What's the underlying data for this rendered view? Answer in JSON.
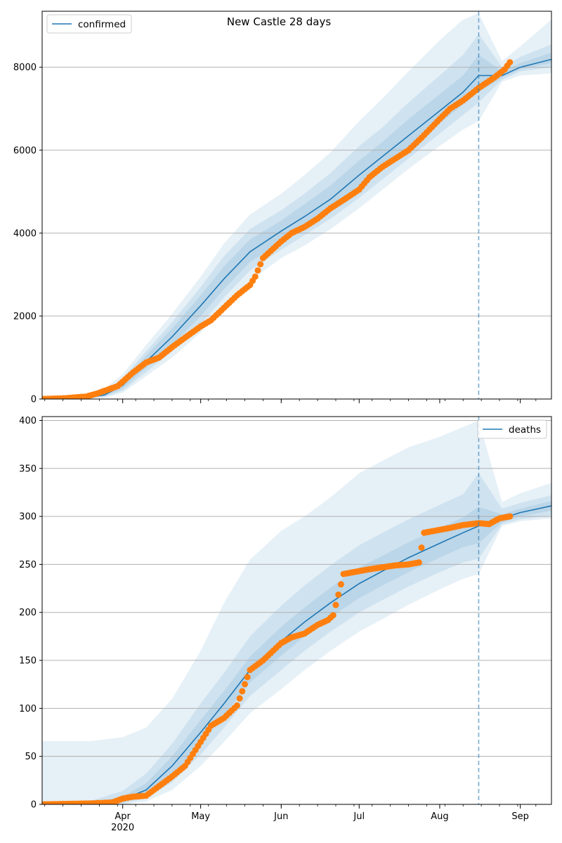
{
  "colors": {
    "model_line": "#1f77b4",
    "observed_points": "#ff7f0e",
    "band": "#1f77b4",
    "grid": "#b0b0b0",
    "forecast_marker": "#1f77b4"
  },
  "chart_data": [
    {
      "type": "line",
      "title": "New Castle 28 days",
      "xlabel": "",
      "ylabel": "",
      "grid": "horizontal",
      "legend": {
        "placement": "top-left",
        "entries": [
          "confirmed"
        ]
      },
      "x_ticks": {
        "show_labels": false,
        "months": [
          "Apr",
          "May",
          "Jun",
          "Jul",
          "Aug",
          "Sep"
        ]
      },
      "xlim": [
        "2020-03-01",
        "2020-09-13"
      ],
      "ylim": [
        0,
        9350
      ],
      "y_ticks": [
        0,
        2000,
        4000,
        6000,
        8000
      ],
      "forecast_start": "2020-08-16",
      "series": [
        {
          "name": "confirmed",
          "kind": "model",
          "x": [
            "2020-03-01",
            "2020-03-16",
            "2020-03-25",
            "2020-04-01",
            "2020-04-10",
            "2020-04-20",
            "2020-05-01",
            "2020-05-10",
            "2020-05-20",
            "2020-06-01",
            "2020-06-10",
            "2020-06-20",
            "2020-07-01",
            "2020-07-10",
            "2020-07-20",
            "2020-08-01",
            "2020-08-10",
            "2020-08-16",
            "2020-08-25",
            "2020-09-01",
            "2020-09-13"
          ],
          "values": [
            0,
            15,
            100,
            330,
            900,
            1500,
            2250,
            2900,
            3550,
            4050,
            4400,
            4820,
            5400,
            5850,
            6350,
            6950,
            7400,
            7800,
            7800,
            8000,
            8190
          ],
          "bands": {
            "inner": {
              "lower": [
                0,
                5,
                70,
                250,
                750,
                1300,
                2000,
                2650,
                3300,
                3800,
                4150,
                4550,
                5100,
                5550,
                6050,
                6650,
                7100,
                7400,
                7750,
                7950,
                8100
              ],
              "upper": [
                0,
                25,
                140,
                420,
                1050,
                1700,
                2500,
                3200,
                3850,
                4300,
                4700,
                5150,
                5750,
                6200,
                6750,
                7350,
                7800,
                8300,
                7900,
                8100,
                8350
              ]
            },
            "middle": {
              "lower": [
                0,
                2,
                50,
                200,
                650,
                1150,
                1800,
                2450,
                3100,
                3600,
                3950,
                4350,
                4850,
                5300,
                5800,
                6400,
                6850,
                7150,
                7700,
                7900,
                8000
              ],
              "upper": [
                0,
                35,
                180,
                500,
                1150,
                1850,
                2700,
                3450,
                4100,
                4550,
                4950,
                5450,
                6100,
                6550,
                7150,
                7800,
                8300,
                8800,
                8000,
                8250,
                8550
              ]
            },
            "outer": {
              "lower": [
                0,
                0,
                30,
                150,
                550,
                1000,
                1600,
                2250,
                2850,
                3400,
                3700,
                4100,
                4600,
                5050,
                5550,
                6100,
                6500,
                6700,
                7650,
                7800,
                7850
              ],
              "upper": [
                0,
                50,
                250,
                600,
                1300,
                2050,
                2950,
                3750,
                4450,
                4950,
                5400,
                5950,
                6700,
                7250,
                7900,
                8650,
                9150,
                9300,
                8150,
                8500,
                9150
              ]
            }
          }
        },
        {
          "name": "",
          "kind": "observed",
          "x": [
            "2020-03-01",
            "2020-03-10",
            "2020-03-18",
            "2020-03-22",
            "2020-03-26",
            "2020-03-30",
            "2020-04-01",
            "2020-04-05",
            "2020-04-10",
            "2020-04-15",
            "2020-04-20",
            "2020-04-25",
            "2020-05-01",
            "2020-05-05",
            "2020-05-10",
            "2020-05-15",
            "2020-05-20",
            "2020-05-22",
            "2020-05-25",
            "2020-06-01",
            "2020-06-05",
            "2020-06-10",
            "2020-06-15",
            "2020-06-20",
            "2020-06-25",
            "2020-07-01",
            "2020-07-05",
            "2020-07-10",
            "2020-07-15",
            "2020-07-20",
            "2020-07-25",
            "2020-08-01",
            "2020-08-05",
            "2020-08-10",
            "2020-08-16",
            "2020-08-22",
            "2020-08-26",
            "2020-08-28"
          ],
          "values": [
            0,
            20,
            60,
            130,
            220,
            310,
            420,
            640,
            880,
            1000,
            1250,
            1480,
            1750,
            1900,
            2200,
            2500,
            2750,
            2950,
            3400,
            3800,
            4000,
            4150,
            4350,
            4600,
            4800,
            5050,
            5350,
            5600,
            5800,
            6000,
            6300,
            6750,
            7000,
            7200,
            7500,
            7750,
            7950,
            8120
          ]
        }
      ]
    },
    {
      "type": "line",
      "title": "",
      "xlabel": "",
      "ylabel": "",
      "grid": "horizontal",
      "legend": {
        "placement": "top-right",
        "entries": [
          "deaths"
        ]
      },
      "x_ticks": {
        "show_labels": true,
        "months": [
          "Apr",
          "May",
          "Jun",
          "Jul",
          "Aug",
          "Sep"
        ],
        "year_label": "2020",
        "year_under": "Apr"
      },
      "xlim": [
        "2020-03-01",
        "2020-09-13"
      ],
      "ylim": [
        0,
        404
      ],
      "y_ticks": [
        0,
        50,
        100,
        150,
        200,
        250,
        300,
        350,
        400
      ],
      "forecast_start": "2020-08-16",
      "series": [
        {
          "name": "deaths",
          "kind": "model",
          "x": [
            "2020-03-01",
            "2020-03-20",
            "2020-04-01",
            "2020-04-10",
            "2020-04-20",
            "2020-05-01",
            "2020-05-10",
            "2020-05-20",
            "2020-06-01",
            "2020-06-10",
            "2020-06-20",
            "2020-07-01",
            "2020-07-10",
            "2020-07-20",
            "2020-08-01",
            "2020-08-10",
            "2020-08-16",
            "2020-08-25",
            "2020-09-01",
            "2020-09-13"
          ],
          "values": [
            0,
            1,
            5,
            15,
            40,
            75,
            105,
            140,
            170,
            190,
            210,
            230,
            243,
            257,
            272,
            283,
            290,
            298,
            304,
            311
          ],
          "bands": {
            "inner": {
              "lower": [
                0,
                0,
                2,
                9,
                30,
                63,
                93,
                127,
                155,
                175,
                195,
                215,
                228,
                242,
                257,
                268,
                272,
                294,
                300,
                306
              ],
              "upper": [
                0,
                2,
                8,
                22,
                50,
                88,
                118,
                154,
                185,
                205,
                226,
                247,
                259,
                273,
                288,
                299,
                310,
                302,
                308,
                316
              ]
            },
            "middle": {
              "lower": [
                0,
                0,
                1,
                6,
                23,
                52,
                80,
                113,
                140,
                160,
                180,
                200,
                213,
                227,
                242,
                252,
                256,
                292,
                297,
                301
              ],
              "upper": [
                0,
                4,
                14,
                32,
                63,
                105,
                137,
                175,
                207,
                228,
                249,
                270,
                283,
                297,
                312,
                323,
                345,
                308,
                314,
                322
              ]
            },
            "outer": {
              "lower": [
                0,
                0,
                0,
                3,
                15,
                40,
                65,
                95,
                120,
                140,
                160,
                180,
                193,
                208,
                224,
                235,
                240,
                290,
                295,
                298
              ],
              "upper": [
                66,
                66,
                70,
                80,
                110,
                160,
                210,
                255,
                285,
                300,
                320,
                345,
                358,
                372,
                383,
                393,
                400,
                315,
                324,
                335
              ]
            }
          }
        },
        {
          "name": "",
          "kind": "observed",
          "x": [
            "2020-03-01",
            "2020-03-20",
            "2020-03-28",
            "2020-04-01",
            "2020-04-05",
            "2020-04-10",
            "2020-04-15",
            "2020-04-20",
            "2020-04-25",
            "2020-05-01",
            "2020-05-05",
            "2020-05-10",
            "2020-05-15",
            "2020-05-20",
            "2020-05-25",
            "2020-06-01",
            "2020-06-05",
            "2020-06-10",
            "2020-06-15",
            "2020-06-19",
            "2020-06-21",
            "2020-06-25",
            "2020-07-01",
            "2020-07-05",
            "2020-07-10",
            "2020-07-15",
            "2020-07-20",
            "2020-07-24",
            "2020-07-26",
            "2020-08-01",
            "2020-08-05",
            "2020-08-10",
            "2020-08-16",
            "2020-08-20",
            "2020-08-24",
            "2020-08-28"
          ],
          "values": [
            0,
            1,
            2,
            6,
            8,
            9,
            19,
            29,
            40,
            65,
            82,
            90,
            103,
            140,
            150,
            168,
            174,
            178,
            187,
            192,
            197,
            240,
            243,
            245,
            247,
            249,
            250,
            252,
            283,
            286,
            288,
            291,
            293,
            292,
            298,
            300
          ]
        }
      ]
    }
  ]
}
